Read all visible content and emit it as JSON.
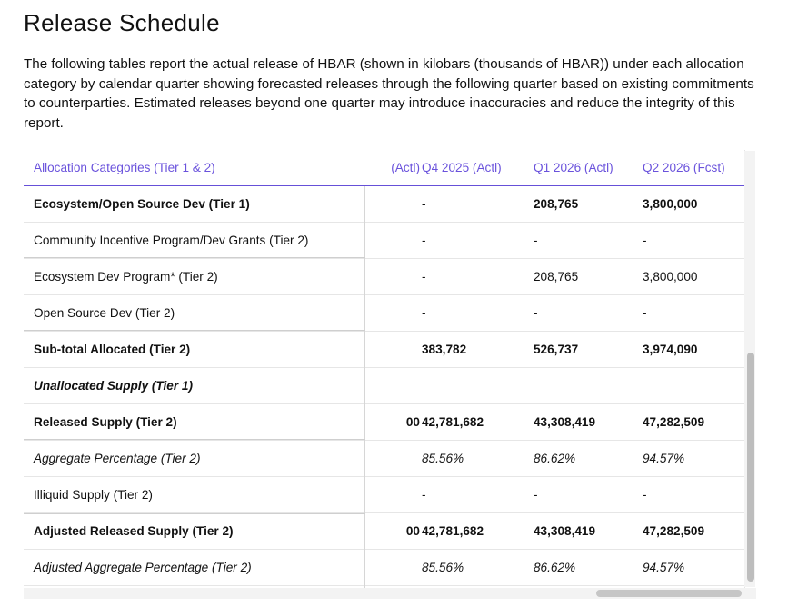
{
  "page": {
    "title": "Release Schedule",
    "intro": "The following tables report the actual release of HBAR (shown in kilobars (thousands of HBAR)) under each allocation category by calendar quarter showing forecasted releases through the following quarter based on existing commitments to counterparties. Estimated releases beyond one quarter may introduce inaccuracies and reduce the integrity of this report."
  },
  "colors": {
    "header_accent": "#6a52dc",
    "divider": "#d6d6d6"
  },
  "table": {
    "headers": {
      "category": "Allocation Categories (Tier 1 & 2)",
      "clipped": "(Actl)",
      "q4_2025": "Q4 2025 (Actl)",
      "q1_2026": "Q1 2026 (Actl)",
      "q2_2026": "Q2 2026 (Fcst)"
    },
    "rows": [
      {
        "category": "Ecosystem/Open Source Dev (Tier 1)",
        "clipped": "",
        "q4_2025": "-",
        "q1_2026": "208,765",
        "q2_2026": "3,800,000"
      },
      {
        "category": "Community Incentive Program/Dev Grants (Tier 2)",
        "clipped": "",
        "q4_2025": "-",
        "q1_2026": "-",
        "q2_2026": "-"
      },
      {
        "category": "Ecosystem Dev Program* (Tier 2)",
        "clipped": "",
        "q4_2025": "-",
        "q1_2026": "208,765",
        "q2_2026": "3,800,000"
      },
      {
        "category": "Open Source Dev (Tier 2)",
        "clipped": "",
        "q4_2025": "-",
        "q1_2026": "-",
        "q2_2026": "-"
      },
      {
        "category": "Sub-total Allocated (Tier 2)",
        "clipped": "",
        "q4_2025": "383,782",
        "q1_2026": "526,737",
        "q2_2026": "3,974,090"
      },
      {
        "category": "Unallocated Supply (Tier 1)",
        "clipped": "",
        "q4_2025": "",
        "q1_2026": "",
        "q2_2026": ""
      },
      {
        "category": "Released Supply (Tier 2)",
        "clipped": "00",
        "q4_2025": "42,781,682",
        "q1_2026": "43,308,419",
        "q2_2026": "47,282,509"
      },
      {
        "category": "Aggregate Percentage (Tier 2)",
        "clipped": "",
        "q4_2025": "85.56%",
        "q1_2026": "86.62%",
        "q2_2026": "94.57%"
      },
      {
        "category": "Illiquid Supply (Tier 2)",
        "clipped": "",
        "q4_2025": "-",
        "q1_2026": "-",
        "q2_2026": "-"
      },
      {
        "category": "Adjusted Released Supply (Tier 2)",
        "clipped": "00",
        "q4_2025": "42,781,682",
        "q1_2026": "43,308,419",
        "q2_2026": "47,282,509"
      },
      {
        "category": "Adjusted Aggregate Percentage (Tier 2)",
        "clipped": "",
        "q4_2025": "85.56%",
        "q1_2026": "86.62%",
        "q2_2026": "94.57%"
      }
    ]
  }
}
